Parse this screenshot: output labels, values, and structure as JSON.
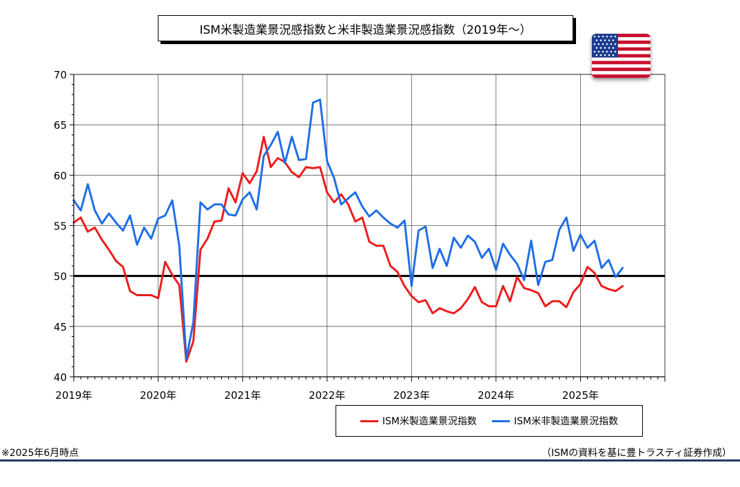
{
  "title": "ISM米製造業景況感指数と米非製造業景況感指数（2019年～）",
  "note": "※2025年6月時点",
  "source": "（ISMの資料を基に豊トラスティ証券作成）",
  "flag": {
    "icon": "us-flag-icon"
  },
  "colors": {
    "manufacturing": "#ee1c1c",
    "non_manufacturing": "#1f6fe6",
    "baseline": "#000000",
    "footer": "#1f3864"
  },
  "chart_data": {
    "type": "line",
    "title": "ISM米製造業景況感指数と米非製造業景況感指数（2019年～）",
    "xlabel": "",
    "ylabel": "",
    "x_start": "2019-01",
    "x_end": "2025-12",
    "ylim": [
      40,
      70
    ],
    "yticks": [
      40,
      45,
      50,
      55,
      60,
      65,
      70
    ],
    "xtick_labels": [
      "2019年",
      "2020年",
      "2021年",
      "2022年",
      "2023年",
      "2024年",
      "2025年"
    ],
    "grid": true,
    "reference_line": 50,
    "legend_position": "bottom-right",
    "series": [
      {
        "name": "ISM米製造業景況指数",
        "color": "#ee1c1c",
        "values": [
          55.3,
          55.8,
          54.4,
          54.8,
          53.6,
          52.6,
          51.5,
          50.9,
          48.5,
          48.1,
          48.1,
          48.1,
          47.8,
          51.4,
          50.1,
          49.1,
          41.5,
          43.5,
          52.6,
          53.7,
          55.4,
          55.5,
          58.7,
          57.3,
          60.2,
          59.2,
          60.4,
          63.8,
          60.8,
          61.7,
          61.3,
          60.3,
          59.8,
          60.8,
          60.7,
          60.8,
          58.3,
          57.3,
          58.1,
          57.1,
          55.4,
          55.8,
          53.4,
          53.0,
          53.0,
          51.0,
          50.4,
          49.0,
          48.0,
          47.4,
          47.6,
          46.3,
          46.8,
          46.5,
          46.3,
          46.8,
          47.7,
          48.9,
          47.4,
          47.0,
          47.0,
          49.0,
          47.5,
          49.9,
          48.8,
          48.6,
          48.3,
          47.0,
          47.5,
          47.5,
          46.9,
          48.4,
          49.2,
          50.9,
          50.3,
          49.0,
          48.7,
          48.5,
          49.0
        ]
      },
      {
        "name": "ISM米非製造業景況指数",
        "color": "#1f6fe6",
        "values": [
          57.5,
          56.5,
          59.1,
          56.5,
          55.2,
          56.2,
          55.3,
          54.5,
          56.0,
          53.1,
          54.8,
          53.7,
          55.7,
          56.0,
          57.5,
          53.0,
          41.8,
          45.4,
          57.3,
          56.6,
          57.1,
          57.1,
          56.1,
          56.0,
          57.6,
          58.3,
          56.6,
          61.9,
          63.0,
          64.3,
          61.2,
          63.8,
          61.5,
          61.6,
          67.2,
          67.5,
          61.4,
          59.7,
          57.1,
          57.7,
          58.3,
          56.9,
          55.9,
          56.5,
          55.8,
          55.2,
          54.8,
          55.5,
          49.0,
          54.5,
          54.9,
          50.8,
          52.7,
          51.0,
          53.8,
          52.8,
          54.0,
          53.4,
          51.8,
          52.7,
          50.6,
          53.2,
          52.1,
          51.2,
          49.6,
          53.5,
          49.1,
          51.4,
          51.6,
          54.6,
          55.8,
          52.5,
          54.1,
          52.8,
          53.5,
          50.8,
          51.6,
          49.9,
          50.8
        ]
      }
    ]
  }
}
